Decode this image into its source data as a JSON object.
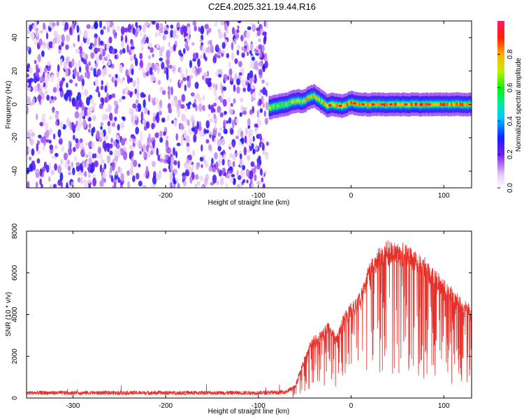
{
  "title": "C2E4.2025.321.19.44.R16",
  "chart_data": [
    {
      "type": "heatmap",
      "xlabel": "Height of straight line (km)",
      "ylabel": "Frequency (Hz)",
      "xlim": [
        -350,
        130
      ],
      "ylim": [
        -50,
        50
      ],
      "xticks": [
        -300,
        -200,
        -100,
        0,
        100
      ],
      "yticks": [
        -40,
        -20,
        0,
        20,
        40
      ],
      "noise_region": {
        "x_range": [
          -350,
          -90
        ],
        "y_range": [
          -50,
          50
        ],
        "level_range": [
          0.05,
          0.3
        ]
      },
      "signal_ridge": {
        "x": [
          -88,
          -80,
          -70,
          -60,
          -50,
          -45,
          -40,
          -35,
          -30,
          -25,
          -20,
          -10,
          0,
          10,
          20,
          40,
          60,
          80,
          100,
          130
        ],
        "frequency": [
          -2,
          -1,
          0,
          2,
          2,
          4,
          5,
          3,
          1,
          -1,
          0,
          -1,
          1,
          0,
          0,
          0,
          0,
          0,
          0,
          0
        ],
        "peak_amplitude": [
          0.7,
          0.65,
          0.7,
          0.75,
          0.8,
          0.85,
          0.8,
          0.8,
          0.85,
          0.9,
          0.9,
          0.9,
          0.95,
          0.95,
          0.95,
          0.95,
          0.95,
          0.95,
          0.95,
          0.95
        ]
      },
      "colorbar": {
        "label": "Normalized spectral amplitude",
        "ticks": [
          0.0,
          0.2,
          0.4,
          0.6,
          0.8
        ],
        "range": [
          0,
          1
        ]
      }
    },
    {
      "type": "line",
      "xlabel": "Height of straight line (km)",
      "ylabel": "SNR (10 * v/v)",
      "xlim": [
        -350,
        130
      ],
      "ylim": [
        0,
        8000
      ],
      "xticks": [
        -300,
        -200,
        -100,
        0,
        100
      ],
      "yticks": [
        0,
        2000,
        4000,
        6000,
        8000
      ],
      "series": [
        {
          "name": "SNR",
          "color": "#e8302a",
          "x": [
            -350,
            -300,
            -250,
            -200,
            -150,
            -100,
            -80,
            -70,
            -60,
            -55,
            -50,
            -45,
            -40,
            -35,
            -30,
            -25,
            -20,
            -15,
            -10,
            -5,
            0,
            5,
            10,
            15,
            20,
            25,
            30,
            35,
            40,
            45,
            50,
            55,
            60,
            70,
            80,
            90,
            100,
            110,
            120,
            130
          ],
          "y": [
            250,
            250,
            250,
            250,
            250,
            250,
            260,
            300,
            600,
            1400,
            2000,
            2600,
            3000,
            3000,
            3300,
            3600,
            3200,
            3000,
            3900,
            4200,
            4500,
            4800,
            5200,
            5800,
            6500,
            6900,
            7200,
            7400,
            7500,
            7500,
            7400,
            7400,
            7300,
            7000,
            6700,
            6200,
            5700,
            5200,
            4700,
            4400
          ]
        }
      ]
    }
  ]
}
